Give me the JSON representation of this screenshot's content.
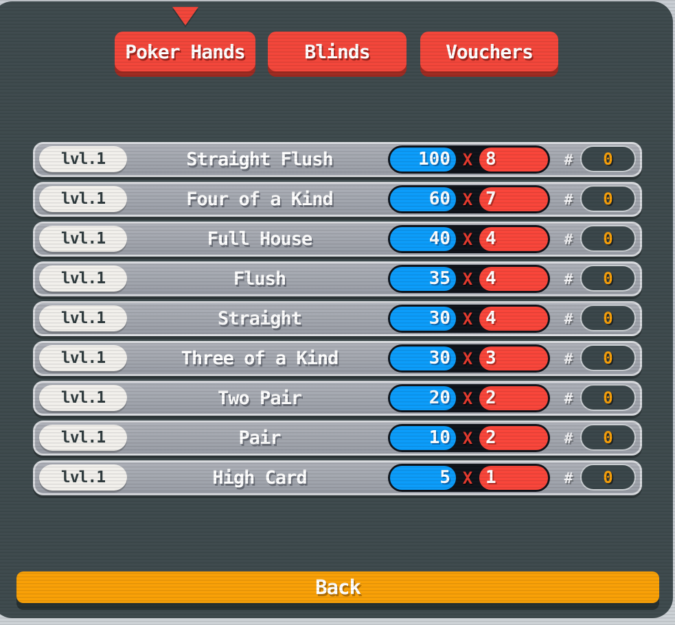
{
  "header": {
    "tabs": [
      {
        "label": "Poker Hands",
        "selected": true
      },
      {
        "label": "Blinds",
        "selected": false
      },
      {
        "label": "Vouchers",
        "selected": false
      }
    ]
  },
  "hands": [
    {
      "level": "lvl.1",
      "name": "Straight Flush",
      "chips": "100",
      "mult": "8",
      "played": "0"
    },
    {
      "level": "lvl.1",
      "name": "Four of a Kind",
      "chips": "60",
      "mult": "7",
      "played": "0"
    },
    {
      "level": "lvl.1",
      "name": "Full House",
      "chips": "40",
      "mult": "4",
      "played": "0"
    },
    {
      "level": "lvl.1",
      "name": "Flush",
      "chips": "35",
      "mult": "4",
      "played": "0"
    },
    {
      "level": "lvl.1",
      "name": "Straight",
      "chips": "30",
      "mult": "4",
      "played": "0"
    },
    {
      "level": "lvl.1",
      "name": "Three of a Kind",
      "chips": "30",
      "mult": "3",
      "played": "0"
    },
    {
      "level": "lvl.1",
      "name": "Two Pair",
      "chips": "20",
      "mult": "2",
      "played": "0"
    },
    {
      "level": "lvl.1",
      "name": "Pair",
      "chips": "10",
      "mult": "2",
      "played": "0"
    },
    {
      "level": "lvl.1",
      "name": "High Card",
      "chips": "5",
      "mult": "1",
      "played": "0"
    }
  ],
  "labels": {
    "times": "X",
    "count_prefix": "#",
    "back": "Back"
  },
  "colors": {
    "panel_dark": "#3e4a4d",
    "tab_red": "#f3463a",
    "chips_blue": "#0b9cfa",
    "mult_red": "#f9453a",
    "count_orange": "#f9a008",
    "back_orange": "#f9a006"
  }
}
